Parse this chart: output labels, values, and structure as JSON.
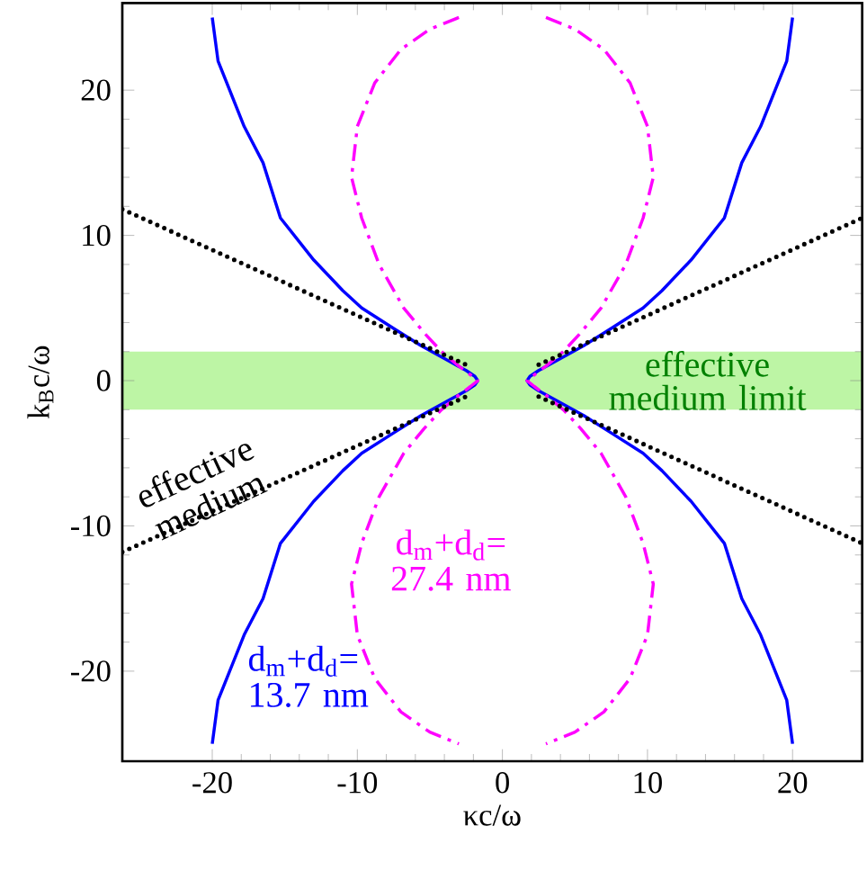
{
  "chart_data": {
    "type": "line",
    "xlabel": "κc/ω",
    "ylabel": "k$_{B}$c/ω",
    "xlim": [
      -26.2,
      24.8
    ],
    "ylim": [
      -26.2,
      26
    ],
    "xticks": [
      -20,
      -10,
      0,
      10,
      20
    ],
    "yticks": [
      -20,
      -10,
      0,
      10,
      20
    ],
    "bands": [
      {
        "axis": "y",
        "from": -2,
        "to": 2,
        "label": "effective medium limit",
        "color": "#bdf5a5"
      }
    ],
    "series": [
      {
        "name": "d$_{m}$+d$_{d}$= 13.7 nm",
        "color": "#0000ff",
        "line_style": "solid",
        "x": [
          20,
          19.6,
          18.8,
          17.8,
          16.5,
          15.3,
          13,
          11,
          9.7,
          7.5,
          5.6,
          3.6,
          2.5,
          1.9,
          1.7,
          1.9,
          2.5,
          3.6,
          5.6,
          7.5,
          9.7,
          11,
          13,
          15.3,
          16.5,
          17.8,
          18.8,
          19.6,
          20,
          0,
          -20,
          -19.6,
          -18.8,
          -17.8,
          -16.5,
          -15.3,
          -13,
          -11,
          -9.7,
          -7.5,
          -5.6,
          -3.6,
          -2.5,
          -1.9,
          -1.7,
          -1.9,
          -2.5,
          -3.6,
          -5.6,
          -7.5,
          -9.7,
          -11,
          -13,
          -15.3,
          -16.5,
          -17.8,
          -18.8,
          -19.6,
          -20
        ],
        "values": [
          25,
          22,
          20,
          17.5,
          15,
          11.2,
          8.3,
          6.2,
          5.0,
          3.6,
          2.4,
          1.3,
          0.7,
          0.3,
          0,
          -0.3,
          -0.7,
          -1.3,
          -2.4,
          -3.6,
          -5.0,
          -6.2,
          -8.3,
          -11.2,
          -15,
          -17.5,
          -20,
          -22,
          -25,
          null,
          25,
          22,
          20,
          17.5,
          15,
          11.2,
          8.3,
          6.2,
          5.0,
          3.6,
          2.4,
          1.3,
          0.7,
          0.3,
          0,
          -0.3,
          -0.7,
          -1.3,
          -2.4,
          -3.6,
          -5.0,
          -6.2,
          -8.3,
          -11.2,
          -15,
          -17.5,
          -20,
          -22,
          -25
        ]
      },
      {
        "name": "d$_{m}$+d$_{d}$= 27.4 nm",
        "color": "#ff00ff",
        "line_style": "dashdot",
        "x": [
          3,
          5,
          7,
          8.8,
          10,
          10.4,
          9.7,
          8.5,
          6.8,
          5.4,
          4.2,
          3,
          2.2,
          1.7,
          2.2,
          3,
          4.2,
          5.4,
          6.8,
          8.5,
          9.7,
          10.4,
          10,
          8.8,
          7,
          5,
          3,
          0,
          -3,
          -5,
          -7,
          -8.8,
          -10,
          -10.4,
          -9.7,
          -8.5,
          -6.8,
          -5.4,
          -4.2,
          -3,
          -2.2,
          -1.7,
          -2.2,
          -3,
          -4.2,
          -5.4,
          -6.8,
          -8.5,
          -9.7,
          -10.4,
          -10,
          -8.8,
          -7,
          -5,
          -3
        ],
        "values": [
          25,
          24.2,
          22.8,
          20.5,
          17.5,
          14,
          11.2,
          8,
          5,
          3.3,
          2,
          1,
          0.4,
          0,
          -0.4,
          -1,
          -2,
          -3.3,
          -5,
          -8,
          -11.2,
          -14,
          -17.5,
          -20.5,
          -22.8,
          -24.2,
          -25,
          null,
          25,
          24.2,
          22.8,
          20.5,
          17.5,
          14,
          11.2,
          8,
          5,
          3.3,
          2,
          1,
          0.4,
          0,
          -0.4,
          -1,
          -2,
          -3.3,
          -5,
          -8,
          -11.2,
          -14,
          -17.5,
          -20.5,
          -22.8,
          -24.2,
          -25
        ]
      },
      {
        "name": "effective medium",
        "color": "#000000",
        "line_style": "dotted",
        "x": [
          -26.2,
          -2.5,
          0,
          2.5,
          24.8
        ],
        "values": [
          -11.8,
          -1.1,
          null,
          1.1,
          11.2
        ]
      },
      {
        "color": "#000000",
        "line_style": "dotted",
        "x": [
          -26.2,
          -2.5,
          0,
          2.5,
          24.8
        ],
        "values": [
          11.8,
          1.1,
          null,
          -1.1,
          -11.2
        ]
      }
    ]
  }
}
